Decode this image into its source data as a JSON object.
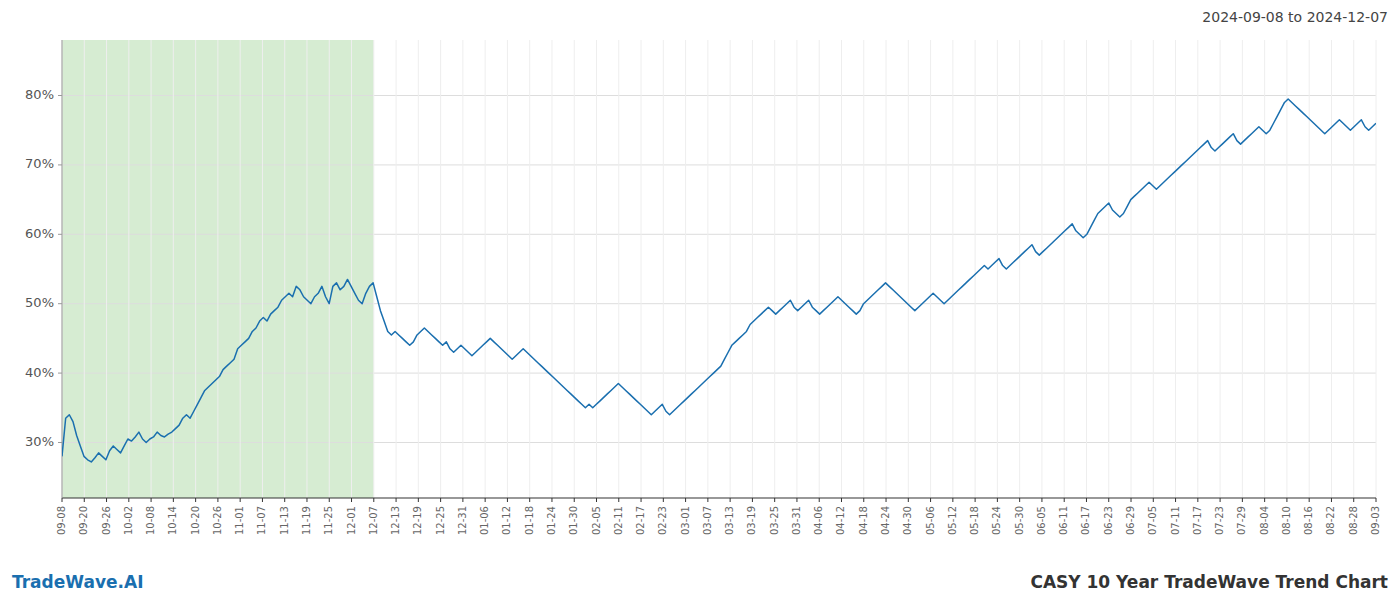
{
  "chart_data": {
    "type": "line",
    "title": "CASY 10 Year TradeWave Trend Chart",
    "subtitle": "2024-09-08 to 2024-12-07",
    "annotations": [
      "TradeWave.AI"
    ],
    "color": "#1a6faf",
    "grid": true,
    "highlight": {
      "x_start": 0,
      "x_end": 85.1864,
      "color": "#d6ecd2"
    },
    "xlim": [
      0,
      359
    ],
    "xticks": [
      {
        "value": 0,
        "label": "09-08"
      },
      {
        "value": 6.0847,
        "label": "09-20"
      },
      {
        "value": 12.1695,
        "label": "09-26"
      },
      {
        "value": 18.2542,
        "label": "10-02"
      },
      {
        "value": 24.339,
        "label": "10-08"
      },
      {
        "value": 30.4237,
        "label": "10-14"
      },
      {
        "value": 36.5085,
        "label": "10-20"
      },
      {
        "value": 42.5932,
        "label": "10-26"
      },
      {
        "value": 48.678,
        "label": "11-01"
      },
      {
        "value": 54.7627,
        "label": "11-07"
      },
      {
        "value": 60.8475,
        "label": "11-13"
      },
      {
        "value": 66.9322,
        "label": "11-19"
      },
      {
        "value": 73.0169,
        "label": "11-25"
      },
      {
        "value": 79.1017,
        "label": "12-01"
      },
      {
        "value": 85.1864,
        "label": "12-07"
      },
      {
        "value": 91.2712,
        "label": "12-13"
      },
      {
        "value": 97.3559,
        "label": "12-19"
      },
      {
        "value": 103.4407,
        "label": "12-25"
      },
      {
        "value": 109.5254,
        "label": "12-31"
      },
      {
        "value": 115.6102,
        "label": "01-06"
      },
      {
        "value": 121.6949,
        "label": "01-12"
      },
      {
        "value": 127.7797,
        "label": "01-18"
      },
      {
        "value": 133.8644,
        "label": "01-24"
      },
      {
        "value": 139.9492,
        "label": "01-30"
      },
      {
        "value": 146.0339,
        "label": "02-05"
      },
      {
        "value": 152.1186,
        "label": "02-11"
      },
      {
        "value": 158.2034,
        "label": "02-17"
      },
      {
        "value": 164.2881,
        "label": "02-23"
      },
      {
        "value": 170.3729,
        "label": "03-01"
      },
      {
        "value": 176.4576,
        "label": "03-07"
      },
      {
        "value": 182.5424,
        "label": "03-13"
      },
      {
        "value": 188.6271,
        "label": "03-19"
      },
      {
        "value": 194.7119,
        "label": "03-25"
      },
      {
        "value": 200.7966,
        "label": "03-31"
      },
      {
        "value": 206.8814,
        "label": "04-06"
      },
      {
        "value": 212.9661,
        "label": "04-12"
      },
      {
        "value": 219.0508,
        "label": "04-18"
      },
      {
        "value": 225.1356,
        "label": "04-24"
      },
      {
        "value": 231.2203,
        "label": "04-30"
      },
      {
        "value": 237.3051,
        "label": "05-06"
      },
      {
        "value": 243.3898,
        "label": "05-12"
      },
      {
        "value": 249.4746,
        "label": "05-18"
      },
      {
        "value": 255.5593,
        "label": "05-24"
      },
      {
        "value": 261.6441,
        "label": "05-30"
      },
      {
        "value": 267.7288,
        "label": "06-05"
      },
      {
        "value": 273.8136,
        "label": "06-11"
      },
      {
        "value": 279.8983,
        "label": "06-17"
      },
      {
        "value": 285.9831,
        "label": "06-23"
      },
      {
        "value": 292.0678,
        "label": "06-29"
      },
      {
        "value": 298.1525,
        "label": "07-05"
      },
      {
        "value": 304.2373,
        "label": "07-11"
      },
      {
        "value": 310.322,
        "label": "07-17"
      },
      {
        "value": 316.4068,
        "label": "07-23"
      },
      {
        "value": 322.4915,
        "label": "07-29"
      },
      {
        "value": 328.5763,
        "label": "08-04"
      },
      {
        "value": 334.661,
        "label": "08-10"
      },
      {
        "value": 340.7458,
        "label": "08-16"
      },
      {
        "value": 346.8305,
        "label": "08-22"
      },
      {
        "value": 352.9153,
        "label": "08-28"
      },
      {
        "value": 359,
        "label": "09-03"
      }
    ],
    "ylim": [
      22,
      88
    ],
    "yticks": [
      {
        "value": 30,
        "label": "30%"
      },
      {
        "value": 40,
        "label": "40%"
      },
      {
        "value": 50,
        "label": "50%"
      },
      {
        "value": 60,
        "label": "60%"
      },
      {
        "value": 70,
        "label": "70%"
      },
      {
        "value": 80,
        "label": "80%"
      }
    ],
    "values": [
      28.0,
      33.5,
      34.0,
      33.0,
      31.0,
      29.5,
      28.0,
      27.5,
      27.2,
      27.8,
      28.5,
      28.0,
      27.5,
      28.8,
      29.5,
      29.0,
      28.5,
      29.5,
      30.5,
      30.2,
      30.8,
      31.5,
      30.5,
      30.0,
      30.5,
      30.8,
      31.5,
      31.0,
      30.8,
      31.2,
      31.5,
      32.0,
      32.5,
      33.5,
      34.0,
      33.5,
      34.5,
      35.5,
      36.5,
      37.5,
      38.0,
      38.5,
      39.0,
      39.5,
      40.5,
      41.0,
      41.5,
      42.0,
      43.5,
      44.0,
      44.5,
      45.0,
      46.0,
      46.5,
      47.5,
      48.0,
      47.5,
      48.5,
      49.0,
      49.5,
      50.5,
      51.0,
      51.5,
      51.0,
      52.5,
      52.0,
      51.0,
      50.5,
      50.0,
      51.0,
      51.5,
      52.5,
      51.0,
      50.0,
      52.5,
      53.0,
      52.0,
      52.5,
      53.5,
      52.5,
      51.5,
      50.5,
      50.0,
      51.5,
      52.5,
      53.0,
      51.0,
      49.0,
      47.5,
      46.0,
      45.5,
      46.0,
      45.5,
      45.0,
      44.5,
      44.0,
      44.5,
      45.5,
      46.0,
      46.5,
      46.0,
      45.5,
      45.0,
      44.5,
      44.0,
      44.5,
      43.5,
      43.0,
      43.5,
      44.0,
      43.5,
      43.0,
      42.5,
      43.0,
      43.5,
      44.0,
      44.5,
      45.0,
      44.5,
      44.0,
      43.5,
      43.0,
      42.5,
      42.0,
      42.5,
      43.0,
      43.5,
      43.0,
      42.5,
      42.0,
      41.5,
      41.0,
      40.5,
      40.0,
      39.5,
      39.0,
      38.5,
      38.0,
      37.5,
      37.0,
      36.5,
      36.0,
      35.5,
      35.0,
      35.5,
      35.0,
      35.5,
      36.0,
      36.5,
      37.0,
      37.5,
      38.0,
      38.5,
      38.0,
      37.5,
      37.0,
      36.5,
      36.0,
      35.5,
      35.0,
      34.5,
      34.0,
      34.5,
      35.0,
      35.5,
      34.5,
      34.0,
      34.5,
      35.0,
      35.5,
      36.0,
      36.5,
      37.0,
      37.5,
      38.0,
      38.5,
      39.0,
      39.5,
      40.0,
      40.5,
      41.0,
      42.0,
      43.0,
      44.0,
      44.5,
      45.0,
      45.5,
      46.0,
      47.0,
      47.5,
      48.0,
      48.5,
      49.0,
      49.5,
      49.0,
      48.5,
      49.0,
      49.5,
      50.0,
      50.5,
      49.5,
      49.0,
      49.5,
      50.0,
      50.5,
      49.5,
      49.0,
      48.5,
      49.0,
      49.5,
      50.0,
      50.5,
      51.0,
      50.5,
      50.0,
      49.5,
      49.0,
      48.5,
      49.0,
      50.0,
      50.5,
      51.0,
      51.5,
      52.0,
      52.5,
      53.0,
      52.5,
      52.0,
      51.5,
      51.0,
      50.5,
      50.0,
      49.5,
      49.0,
      49.5,
      50.0,
      50.5,
      51.0,
      51.5,
      51.0,
      50.5,
      50.0,
      50.5,
      51.0,
      51.5,
      52.0,
      52.5,
      53.0,
      53.5,
      54.0,
      54.5,
      55.0,
      55.5,
      55.0,
      55.5,
      56.0,
      56.5,
      55.5,
      55.0,
      55.5,
      56.0,
      56.5,
      57.0,
      57.5,
      58.0,
      58.5,
      57.5,
      57.0,
      57.5,
      58.0,
      58.5,
      59.0,
      59.5,
      60.0,
      60.5,
      61.0,
      61.5,
      60.5,
      60.0,
      59.5,
      60.0,
      61.0,
      62.0,
      63.0,
      63.5,
      64.0,
      64.5,
      63.5,
      63.0,
      62.5,
      63.0,
      64.0,
      65.0,
      65.5,
      66.0,
      66.5,
      67.0,
      67.5,
      67.0,
      66.5,
      67.0,
      67.5,
      68.0,
      68.5,
      69.0,
      69.5,
      70.0,
      70.5,
      71.0,
      71.5,
      72.0,
      72.5,
      73.0,
      73.5,
      72.5,
      72.0,
      72.5,
      73.0,
      73.5,
      74.0,
      74.5,
      73.5,
      73.0,
      73.5,
      74.0,
      74.5,
      75.0,
      75.5,
      75.0,
      74.5,
      75.0,
      76.0,
      77.0,
      78.0,
      79.0,
      79.5,
      79.0,
      78.5,
      78.0,
      77.5,
      77.0,
      76.5,
      76.0,
      75.5,
      75.0,
      74.5,
      75.0,
      75.5,
      76.0,
      76.5,
      76.0,
      75.5,
      75.0,
      75.5,
      76.0,
      76.5,
      75.5,
      75.0,
      75.5,
      76.0
    ]
  }
}
